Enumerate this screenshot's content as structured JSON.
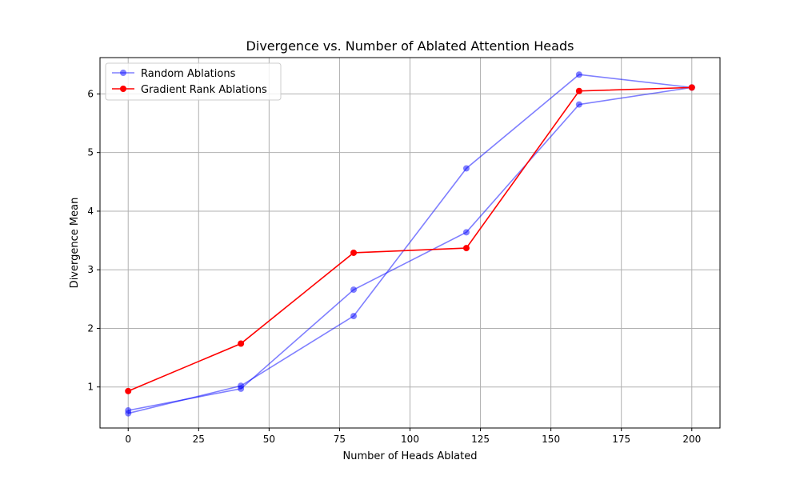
{
  "chart_data": {
    "type": "line",
    "title": "Divergence vs. Number of Ablated Attention Heads",
    "xlabel": "Number of Heads Ablated",
    "ylabel": "Divergence Mean",
    "xlim": [
      -10,
      210
    ],
    "ylim": [
      0.3,
      6.62
    ],
    "xticks": [
      0,
      25,
      50,
      75,
      100,
      125,
      150,
      175,
      200
    ],
    "yticks": [
      1,
      2,
      3,
      4,
      5,
      6
    ],
    "grid": true,
    "legend_position": "top-left",
    "series": [
      {
        "name": "Random Ablations",
        "color": "#0000ff",
        "opacity": 0.5,
        "x": [
          0,
          40,
          80,
          120,
          160,
          200
        ],
        "y": [
          0.55,
          1.02,
          2.21,
          4.73,
          6.33,
          6.11
        ]
      },
      {
        "name": "",
        "color": "#0000ff",
        "opacity": 0.5,
        "x": [
          0,
          40,
          80,
          120,
          160,
          200
        ],
        "y": [
          0.6,
          0.97,
          2.66,
          3.64,
          5.82,
          6.11
        ]
      },
      {
        "name": "Gradient Rank Ablations",
        "color": "#ff0000",
        "opacity": 1,
        "x": [
          0,
          40,
          80,
          120,
          160,
          200
        ],
        "y": [
          0.93,
          1.74,
          3.29,
          3.37,
          6.05,
          6.11
        ]
      }
    ]
  }
}
